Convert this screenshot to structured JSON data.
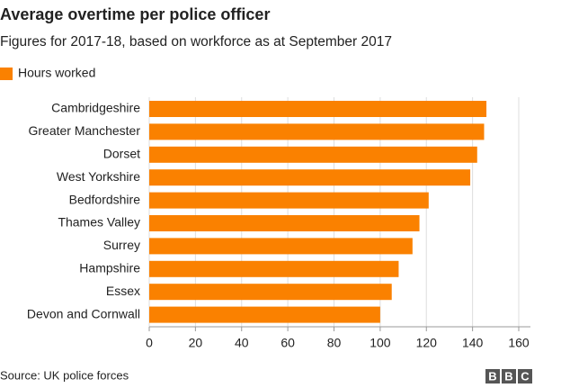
{
  "chart_data": {
    "type": "bar",
    "orientation": "horizontal",
    "title": "Average overtime per police officer",
    "subtitle": "Figures for 2017-18, based on workforce as at September 2017",
    "categories": [
      "Cambridgeshire",
      "Greater Manchester",
      "Dorset",
      "West Yorkshire",
      "Bedfordshire",
      "Thames Valley",
      "Surrey",
      "Hampshire",
      "Essex",
      "Devon and Cornwall"
    ],
    "series": [
      {
        "name": "Hours worked",
        "color": "#fa8100",
        "values": [
          146,
          145,
          142,
          139,
          121,
          117,
          114,
          108,
          105,
          100
        ]
      }
    ],
    "xlim": [
      0,
      160
    ],
    "xticks": [
      0,
      20,
      40,
      60,
      80,
      100,
      120,
      140,
      160
    ],
    "grid": true,
    "source": "Source: UK police forces",
    "logo": [
      "B",
      "B",
      "C"
    ]
  }
}
